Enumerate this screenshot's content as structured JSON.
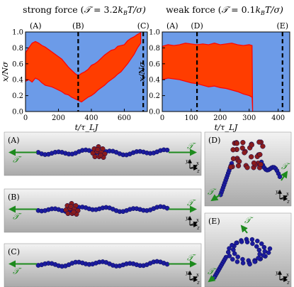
{
  "colors": {
    "background_fill": "#6c9be8",
    "band_fill": "#ff3d00",
    "band_edge": "#ff0000",
    "marker_line": "#000000",
    "bead_chain": "#1b1b9e",
    "bead_knot": "#8b1c1c",
    "force_arrow": "#1d8a1d",
    "snapshot_bg_top": "#f3f3f3",
    "snapshot_bg_bottom": "#a9a9a9"
  },
  "chart_data": [
    {
      "type": "area",
      "title": "strong force (𝒯 = 3.2k_BT/σ)",
      "title_parts": {
        "main": "strong force (",
        "sym": "𝒯",
        "mid": " = 3.2",
        "k": "k",
        "sub": "B",
        "T": "T/σ)"
      },
      "xlabel": "t/τ_LJ",
      "ylabel": "x/Nσ",
      "xlim": [
        0,
        740
      ],
      "ylim": [
        0,
        1.0
      ],
      "xticks": [
        "0",
        "200",
        "400",
        "600"
      ],
      "yticks": [
        "0.0",
        "0.2",
        "0.4",
        "0.6",
        "0.8",
        "1.0"
      ],
      "markers": [
        {
          "label": "(A)",
          "x": 0,
          "dashed": false
        },
        {
          "label": "(B)",
          "x": 320,
          "dashed": true
        },
        {
          "label": "(C)",
          "x": 715,
          "dashed": true
        }
      ],
      "band": {
        "x": [
          0,
          20,
          40,
          60,
          80,
          100,
          120,
          140,
          160,
          180,
          200,
          220,
          240,
          260,
          280,
          300,
          320,
          340,
          360,
          380,
          400,
          420,
          440,
          460,
          480,
          500,
          520,
          540,
          560,
          580,
          600,
          620,
          640,
          660,
          680,
          700
        ],
        "upper": [
          0.74,
          0.8,
          0.86,
          0.88,
          0.86,
          0.83,
          0.81,
          0.78,
          0.75,
          0.72,
          0.69,
          0.66,
          0.61,
          0.56,
          0.52,
          0.48,
          0.45,
          0.48,
          0.5,
          0.53,
          0.58,
          0.6,
          0.63,
          0.67,
          0.71,
          0.74,
          0.77,
          0.78,
          0.82,
          0.83,
          0.84,
          0.89,
          0.92,
          0.94,
          0.97,
          0.99
        ],
        "lower": [
          0.38,
          0.4,
          0.37,
          0.42,
          0.4,
          0.36,
          0.33,
          0.32,
          0.31,
          0.29,
          0.27,
          0.25,
          0.22,
          0.21,
          0.18,
          0.16,
          0.14,
          0.12,
          0.15,
          0.18,
          0.2,
          0.23,
          0.27,
          0.3,
          0.33,
          0.37,
          0.4,
          0.43,
          0.47,
          0.5,
          0.55,
          0.6,
          0.66,
          0.72,
          0.8,
          0.86
        ]
      }
    },
    {
      "type": "area",
      "title": "weak force (𝒯 = 0.1k_BT/σ)",
      "title_parts": {
        "main": "weak force (",
        "sym": "𝒯",
        "mid": " = 0.1",
        "k": "k",
        "sub": "B",
        "T": "T/σ)"
      },
      "xlabel": "t/τ_LJ",
      "ylabel": "x/Nσ",
      "xlim": [
        0,
        440
      ],
      "ylim": [
        0,
        1.0
      ],
      "xticks": [
        "0",
        "100",
        "200",
        "300",
        "400"
      ],
      "yticks": [
        "0.0",
        "0.2",
        "0.4",
        "0.6",
        "0.8",
        "1.0"
      ],
      "markers": [
        {
          "label": "(A)",
          "x": 0,
          "dashed": false
        },
        {
          "label": "(D)",
          "x": 120,
          "dashed": true
        },
        {
          "label": "(E)",
          "x": 415,
          "dashed": true
        }
      ],
      "band": {
        "x": [
          0,
          20,
          40,
          60,
          80,
          100,
          120,
          140,
          160,
          180,
          200,
          220,
          240,
          260,
          280,
          300,
          310,
          312
        ],
        "upper": [
          0.82,
          0.84,
          0.83,
          0.84,
          0.86,
          0.85,
          0.84,
          0.85,
          0.84,
          0.86,
          0.84,
          0.85,
          0.86,
          0.84,
          0.83,
          0.84,
          0.83,
          0.0
        ],
        "lower": [
          0.4,
          0.42,
          0.41,
          0.4,
          0.38,
          0.36,
          0.35,
          0.33,
          0.31,
          0.32,
          0.3,
          0.29,
          0.27,
          0.25,
          0.22,
          0.2,
          0.18,
          0.0
        ]
      }
    }
  ],
  "snapshots": [
    {
      "label": "(A)",
      "force_left": "𝒯",
      "force_right": "𝒯"
    },
    {
      "label": "(B)",
      "force_left": "𝒯",
      "force_right": "𝒯"
    },
    {
      "label": "(C)",
      "force_left": "𝒯",
      "force_right": "𝒯"
    },
    {
      "label": "(D)",
      "force_left": "𝒯",
      "force_right": "𝒯"
    },
    {
      "label": "(E)",
      "force_left": "𝒯",
      "force_right": "𝒯"
    }
  ],
  "axis_triad": {
    "y": "y",
    "x": "x",
    "z": "z"
  }
}
